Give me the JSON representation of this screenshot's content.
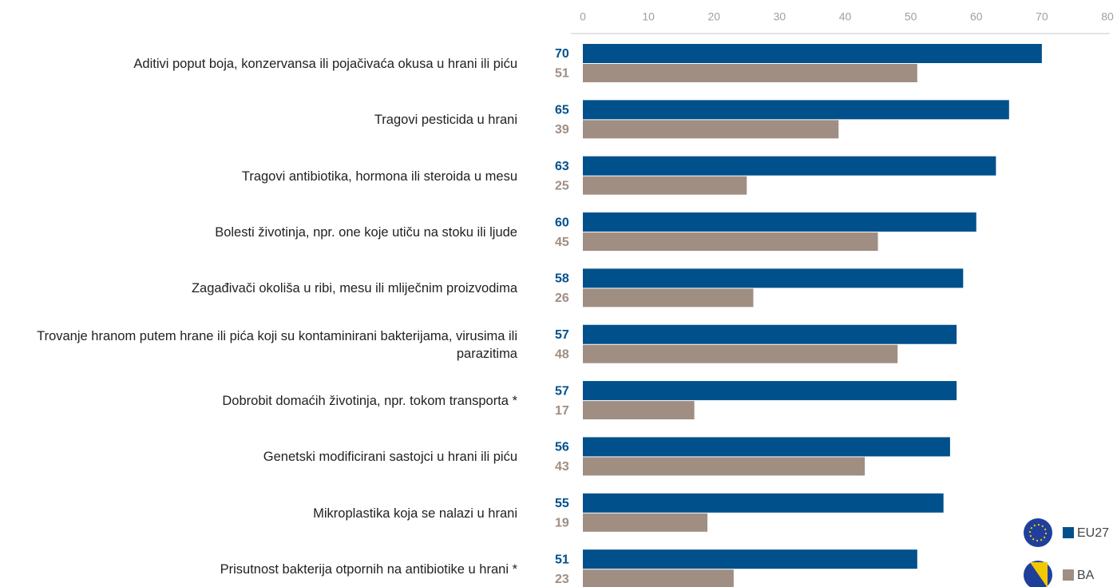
{
  "chart_data": {
    "type": "bar",
    "orientation": "horizontal",
    "categories": [
      "Aditivi poput boja, konzervansa ili pojačivaća okusa u hrani ili piću",
      "Tragovi pesticida u hrani",
      "Tragovi antibiotika, hormona ili steroida u mesu",
      "Bolesti životinja, npr. one koje utiču na stoku ili ljude",
      "Zagađivači okoliša u ribi, mesu ili mliječnim proizvodima",
      "Trovanje hranom putem hrane ili pića koji su kontaminirani bakterijama, virusima ili parazitima",
      "Dobrobit domaćih životinja, npr. tokom transporta *",
      "Genetski modificirani sastojci u hrani ili piću",
      "Mikroplastika koja se nalazi u hrani",
      "Prisutnost bakterija otpornih na antibiotike u hrani *"
    ],
    "series": [
      {
        "name": "EU27",
        "color": "#00508c",
        "values": [
          70,
          65,
          63,
          60,
          58,
          57,
          57,
          56,
          55,
          51
        ]
      },
      {
        "name": "BA",
        "color": "#a08e82",
        "values": [
          51,
          39,
          25,
          45,
          26,
          48,
          17,
          43,
          19,
          23
        ]
      }
    ],
    "xlim": [
      0,
      80
    ],
    "xticks": [
      0,
      10,
      20,
      30,
      40,
      50,
      60,
      70,
      80
    ],
    "legend": "lower right"
  }
}
